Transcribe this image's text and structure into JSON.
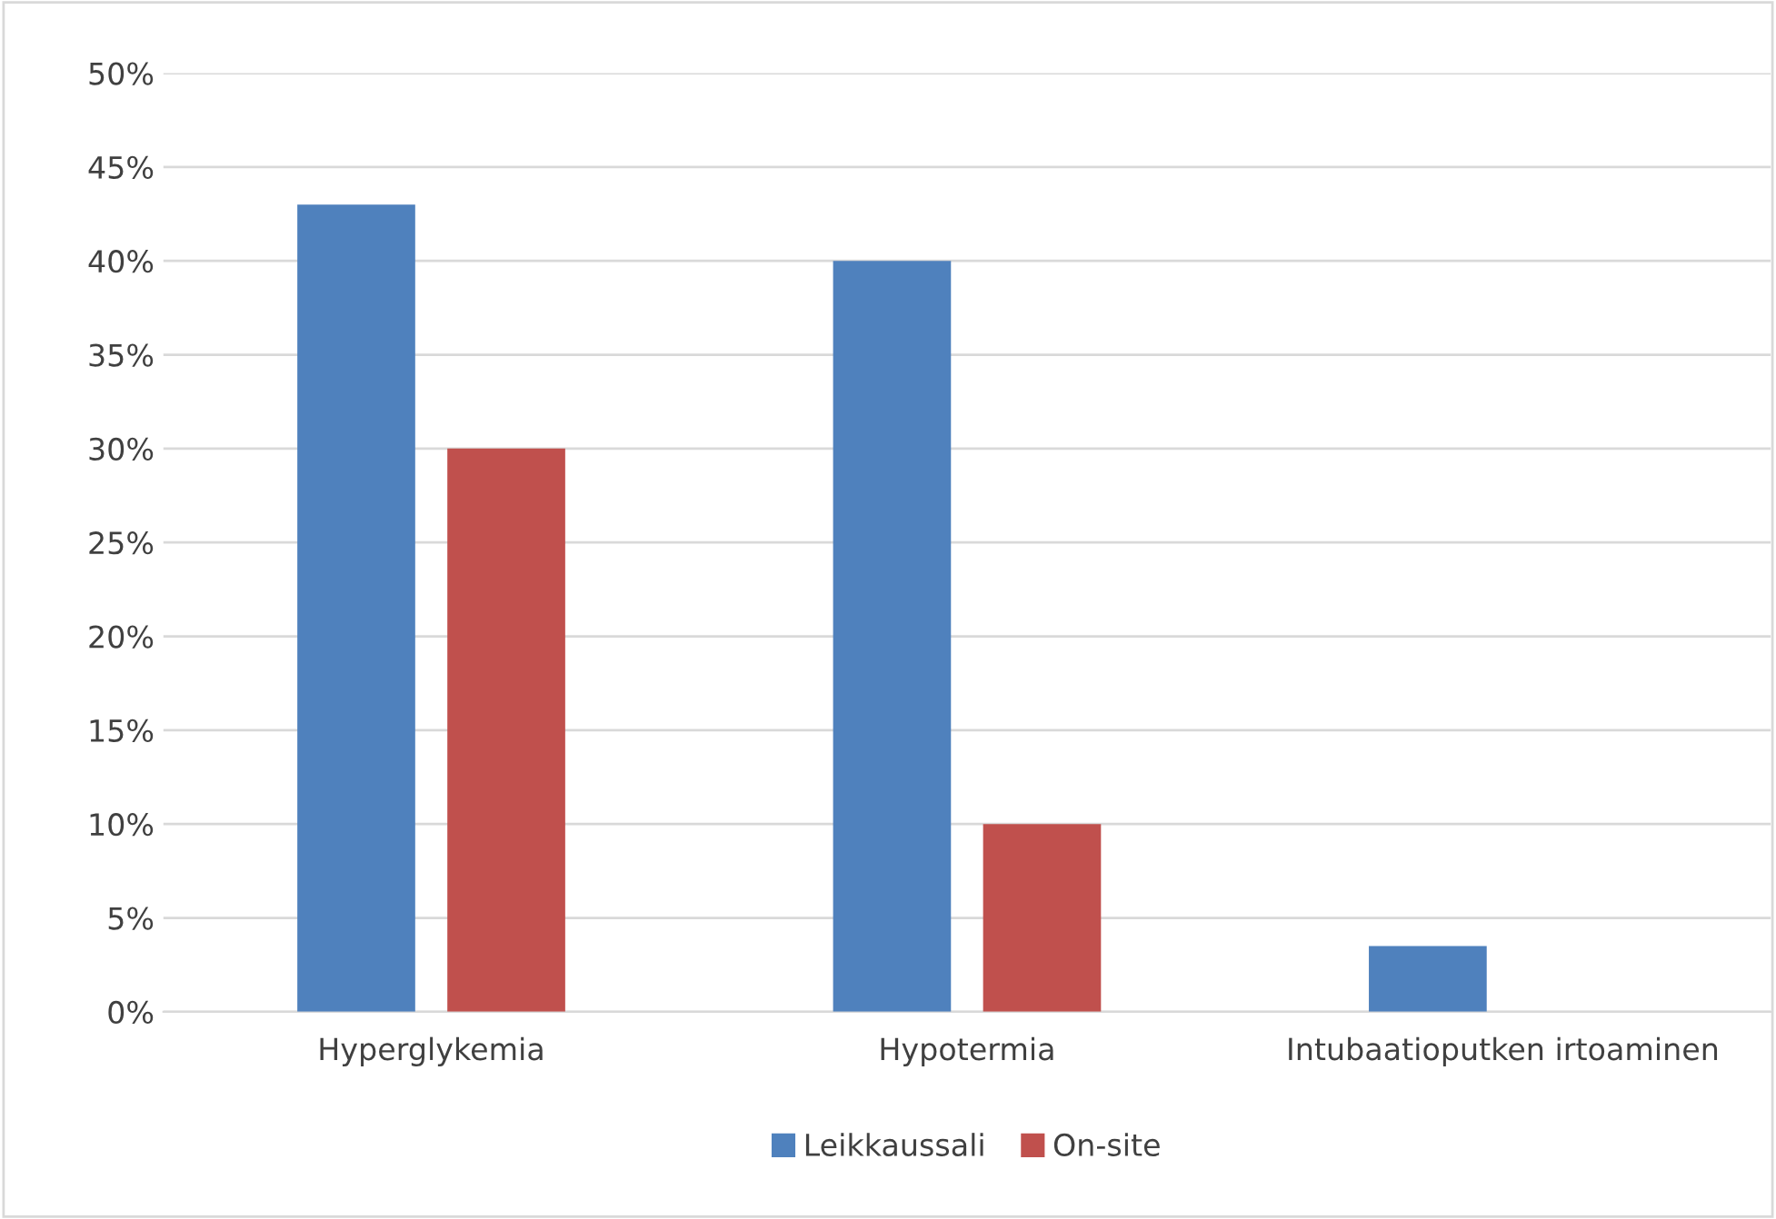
{
  "chart_data": {
    "type": "bar",
    "categories": [
      "Hyperglykemia",
      "Hypotermia",
      "Intubaatioputken irtoaminen"
    ],
    "series": [
      {
        "name": "Leikkaussali",
        "color": "#4f81bd",
        "values": [
          43,
          40,
          3.5
        ]
      },
      {
        "name": "On-site",
        "color": "#c0504d",
        "values": [
          30,
          10,
          null
        ]
      }
    ],
    "ylim": [
      0,
      50
    ],
    "yticks": [
      {
        "value": 0,
        "label": "0%"
      },
      {
        "value": 5,
        "label": "5%"
      },
      {
        "value": 10,
        "label": "10%"
      },
      {
        "value": 15,
        "label": "15%"
      },
      {
        "value": 20,
        "label": "20%"
      },
      {
        "value": 25,
        "label": "25%"
      },
      {
        "value": 30,
        "label": "30%"
      },
      {
        "value": 35,
        "label": "35%"
      },
      {
        "value": 40,
        "label": "40%"
      },
      {
        "value": 45,
        "label": "45%"
      },
      {
        "value": 50,
        "label": "50%"
      }
    ],
    "grid": "y",
    "legend": "bottom"
  }
}
